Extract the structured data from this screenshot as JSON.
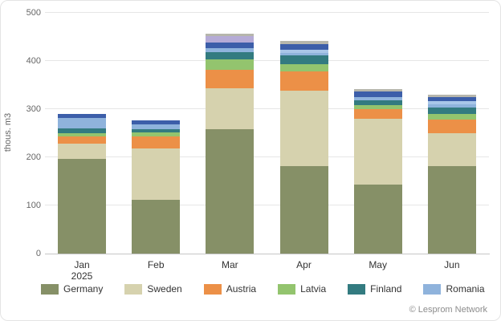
{
  "chart": {
    "y_axis_title": "thous. m3",
    "first_category_year": "2025",
    "attribution": "© Lesprom Network"
  },
  "chart_data": {
    "type": "bar",
    "subtype": "stacked-column",
    "title": "",
    "xlabel": "",
    "ylabel": "thous. m3",
    "ylim": [
      0,
      500
    ],
    "y_ticks": [
      0,
      100,
      200,
      300,
      400,
      500
    ],
    "grid": true,
    "legend_position": "bottom",
    "categories": [
      "Jan",
      "Feb",
      "Mar",
      "Apr",
      "May",
      "Jun"
    ],
    "categories_year": "2025",
    "series": [
      {
        "name": "Germany",
        "color": "#869067",
        "in_legend": true,
        "values": [
          197,
          111,
          258,
          181,
          143,
          182
        ]
      },
      {
        "name": "Sweden",
        "color": "#D6D2AE",
        "in_legend": true,
        "values": [
          31,
          108,
          85,
          157,
          137,
          68
        ]
      },
      {
        "name": "Austria",
        "color": "#EC9047",
        "in_legend": true,
        "values": [
          15,
          24,
          38,
          40,
          20,
          28
        ]
      },
      {
        "name": "Latvia",
        "color": "#93C46E",
        "in_legend": true,
        "values": [
          7,
          8,
          23,
          15,
          8,
          12
        ]
      },
      {
        "name": "Finland",
        "color": "#337B80",
        "in_legend": true,
        "values": [
          10,
          8,
          15,
          18,
          10,
          13
        ]
      },
      {
        "name": "Romania",
        "color": "#8FB3DC",
        "in_legend": true,
        "values": [
          22,
          10,
          7,
          5,
          7,
          7
        ]
      },
      {
        "name": "unlabeled-light-blue",
        "color": "#A9C6E8",
        "in_legend": false,
        "values": [
          0,
          0,
          0,
          7,
          0,
          7
        ]
      },
      {
        "name": "unlabeled-dark-blue",
        "color": "#3C5EA9",
        "in_legend": false,
        "values": [
          8,
          7,
          13,
          12,
          12,
          8
        ]
      },
      {
        "name": "unlabeled-lavender",
        "color": "#B5ABD6",
        "in_legend": false,
        "values": [
          0,
          0,
          13,
          0,
          0,
          0
        ]
      },
      {
        "name": "unlabeled-gray",
        "color": "#B6B6AC",
        "in_legend": false,
        "values": [
          0,
          0,
          5,
          7,
          5,
          5
        ]
      }
    ],
    "totals": [
      290,
      276,
      457,
      442,
      342,
      330
    ]
  }
}
